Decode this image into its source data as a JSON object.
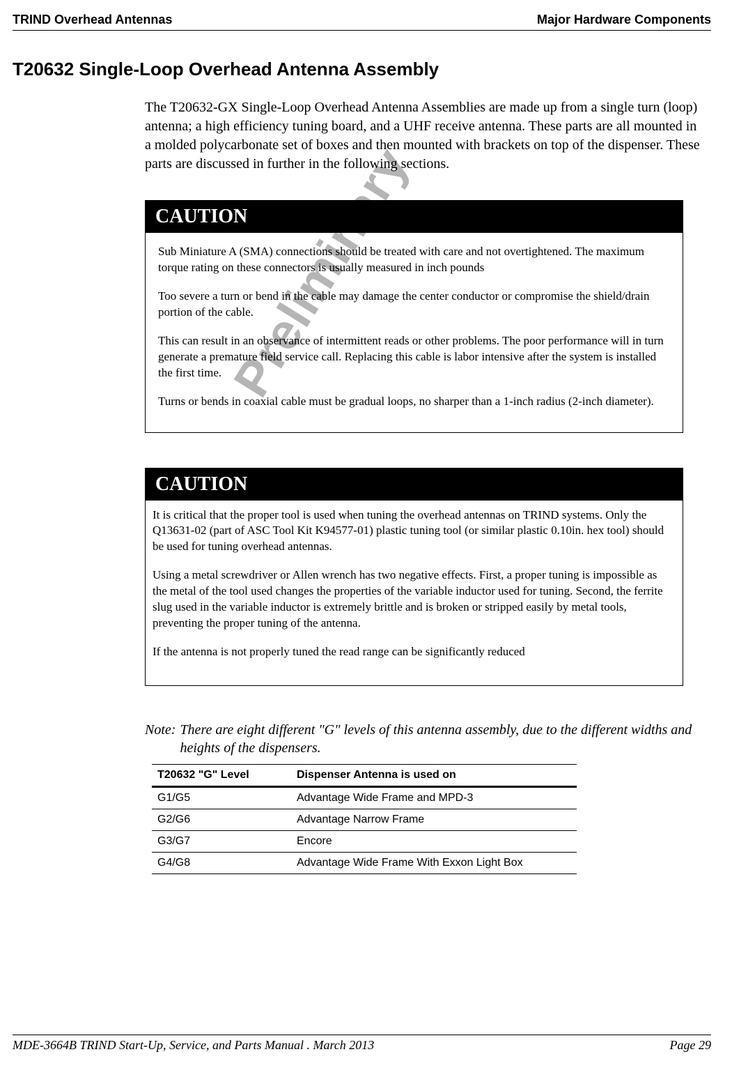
{
  "header": {
    "left": "TRIND Overhead Antennas",
    "right": "Major Hardware Components"
  },
  "section_title": "T20632 Single-Loop Overhead Antenna Assembly",
  "intro_paragraph": "The T20632-GX Single-Loop Overhead Antenna Assemblies are made up from a single turn (loop) antenna; a high efficiency tuning board, and a UHF receive antenna. These parts are all mounted in a molded polycarbonate set of boxes and then mounted with brackets on top of the dispenser. These parts are discussed in further in the following sections.",
  "watermark": "Preliminary",
  "caution1": {
    "label": "CAUTION",
    "paragraphs": [
      "Sub Miniature A (SMA) connections should be treated with care and not overtightened. The maximum torque rating on these connectors is usually measured in inch pounds",
      "Too severe a turn or bend in the cable may damage the center conductor or compromise the shield/drain portion of the cable.",
      "This can result in an observance of intermittent reads or other problems. The poor performance will in turn generate a premature field service call. Replacing this cable is labor intensive after the system is installed the first time.",
      "Turns or bends in coaxial cable must be gradual loops, no sharper than a 1-inch radius (2-inch diameter)."
    ]
  },
  "caution2": {
    "label": "CAUTION",
    "paragraphs": [
      "It is critical that the proper tool is used when tuning the overhead antennas on TRIND systems. Only the Q13631-02 (part of ASC Tool Kit K94577-01) plastic tuning tool (or similar plastic 0.10in. hex tool) should be used for tuning overhead antennas.",
      "Using a metal screwdriver or Allen wrench has two negative effects. First, a proper tuning is impossible as the metal of the tool used changes the properties of the variable inductor used for tuning. Second, the ferrite slug used in the variable inductor is extremely brittle and is broken or stripped easily by metal tools, preventing the proper tuning of the antenna.",
      "If the antenna is not properly tuned the read range can be significantly reduced"
    ]
  },
  "note": {
    "label": "Note:",
    "text": "There are eight different \"G\" levels of this antenna assembly, due to the different widths and heights of the dispensers."
  },
  "g_table": {
    "headers": [
      "T20632 \"G\" Level",
      "Dispenser Antenna is used on"
    ],
    "rows": [
      [
        "G1/G5",
        "Advantage Wide Frame and MPD-3"
      ],
      [
        "G2/G6",
        "Advantage Narrow Frame"
      ],
      [
        "G3/G7",
        "Encore"
      ],
      [
        "G4/G8",
        "Advantage Wide Frame With Exxon Light Box"
      ]
    ]
  },
  "footer": {
    "left": "MDE-3664B TRIND Start-Up, Service, and Parts Manual . March 2013",
    "right": "Page 29"
  }
}
